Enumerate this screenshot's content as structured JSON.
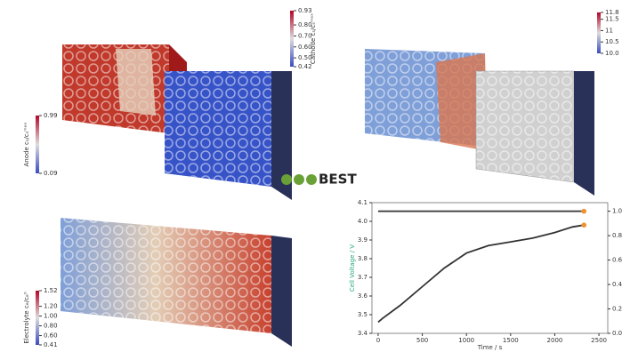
{
  "chart_data": {
    "type": "line",
    "x": [
      0,
      50,
      250,
      500,
      750,
      1000,
      1250,
      1500,
      1750,
      2000,
      2200,
      2330
    ],
    "series": [
      {
        "color": "#2aa683",
        "values": [
          3.46,
          3.48,
          3.55,
          3.65,
          3.75,
          3.83,
          3.87,
          3.89,
          3.91,
          3.94,
          3.97,
          3.98
        ]
      },
      {
        "color": "#2a7ab0",
        "axis": "y2",
        "values": [
          1.0,
          1.0,
          1.0,
          1.0,
          1.0,
          1.0,
          1.0,
          1.0,
          1.0,
          1.0,
          1.0,
          1.0
        ]
      }
    ],
    "xlabel": "Time / s",
    "ylabel": "Cell Voltage / V",
    "xlim": [
      -70,
      2600
    ],
    "xticks": [
      0,
      500,
      1000,
      1500,
      2000,
      2500
    ],
    "ylim": [
      3.4,
      4.1
    ],
    "yticks": [
      {
        "value": 3.4,
        "label": "3.4"
      },
      {
        "value": 3.5,
        "label": "3.5"
      },
      {
        "value": 3.6,
        "label": "3.6"
      },
      {
        "value": 3.7,
        "label": "3.7"
      },
      {
        "value": 3.8,
        "label": "3.8"
      },
      {
        "value": 3.9,
        "label": "3.9"
      },
      {
        "value": 4.0,
        "label": "4.0"
      },
      {
        "value": 4.1,
        "label": "4.1"
      }
    ],
    "y2lim": [
      0,
      1.07
    ],
    "y2ticks": [
      {
        "value": 0,
        "label": "0.0"
      },
      {
        "value": 0.2,
        "label": "0.2"
      },
      {
        "value": 0.4,
        "label": "0.4"
      },
      {
        "value": 0.6,
        "label": "0.6"
      },
      {
        "value": 0.8,
        "label": "0.8"
      },
      {
        "value": 1.0,
        "label": "1.0"
      }
    ]
  },
  "colorbars": [
    {
      "label": "Cathode cₛ/cₛᵐᵃˣ",
      "lim": [
        0.42,
        0.93
      ],
      "ticks": [
        0.93,
        {
          "value": 0.8,
          "label": "0.80"
        },
        {
          "value": 0.7,
          "label": "0.70"
        },
        {
          "value": 0.6,
          "label": "0.60"
        },
        {
          "value": 0.5,
          "label": "0.50"
        },
        0.42
      ]
    },
    {
      "label": "Anode cₛ/cₛᵐᵃˣ",
      "lim": [
        0.09,
        0.99
      ],
      "ticks": [
        0.99,
        0.09
      ]
    },
    {
      "lim": [
        10.0,
        11.8
      ],
      "ticks": [
        11.8,
        11.5,
        11,
        10.5,
        {
          "value": 10.0,
          "label": "10.0"
        }
      ]
    },
    {
      "label": "Electrolyte cₑ/cₑ⁰",
      "lim": [
        0.41,
        1.52
      ],
      "ticks": [
        1.52,
        {
          "value": 1.2,
          "label": "1.20"
        },
        {
          "value": 1.0,
          "label": "1.00"
        },
        {
          "value": 0.8,
          "label": "0.80"
        },
        {
          "value": 0.6,
          "label": "0.60"
        },
        0.41
      ]
    }
  ],
  "logo": "BEST"
}
